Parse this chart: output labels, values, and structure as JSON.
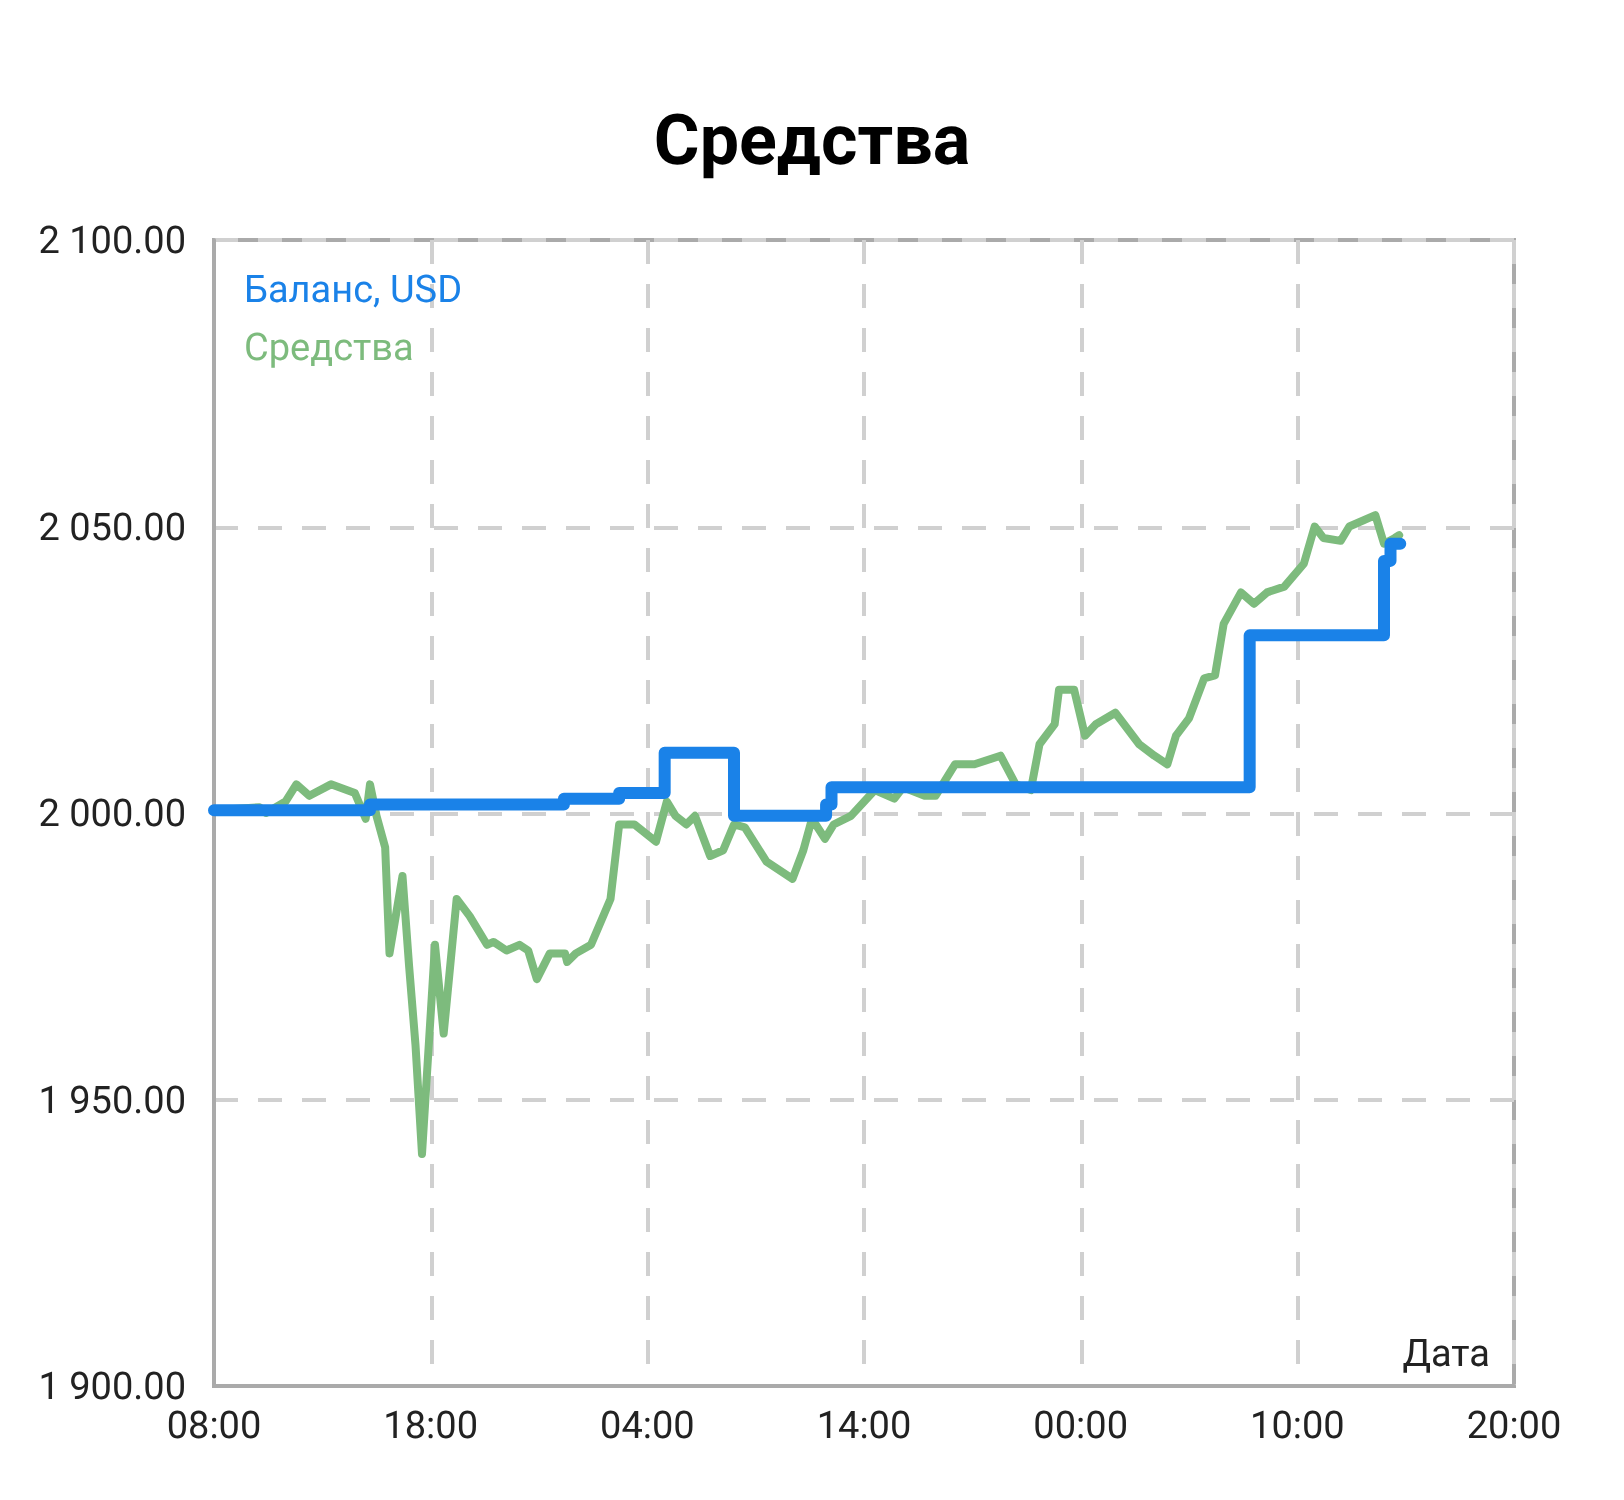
{
  "chart_data": {
    "type": "line",
    "title": "Средства",
    "xlabel": "Дата",
    "xlim": [
      "--01-01T08:00",
      "--01-03T20:00"
    ],
    "xticks": [
      {
        "value": "--01-01T08:00",
        "label": "08:00"
      },
      {
        "value": "--01-01T18:00",
        "label": "18:00"
      },
      {
        "value": "--01-02T04:00",
        "label": "04:00"
      },
      {
        "value": "--01-02T14:00",
        "label": "14:00"
      },
      {
        "value": "--01-03T00:00",
        "label": "00:00"
      },
      {
        "value": "--01-03T10:00",
        "label": "10:00"
      },
      {
        "value": "--01-03T20:00",
        "label": "20:00"
      }
    ],
    "ylim": [
      1900,
      2100
    ],
    "yticks": [
      {
        "value": 1900,
        "label": "1 900.00"
      },
      {
        "value": 1950,
        "label": "1 950.00"
      },
      {
        "value": 2000,
        "label": "2 000.00"
      },
      {
        "value": 2050,
        "label": "2 050.00"
      },
      {
        "value": 2100,
        "label": "2 100.00"
      }
    ],
    "grid": true,
    "legend": "top left",
    "marker": "none",
    "series": [
      {
        "name": "Баланс, USD",
        "type": "step",
        "color": "#1a82e8",
        "x": [
          "--01-01T08:00",
          "--01-01T15:12",
          "--01-02T00:09",
          "--01-02T02:42",
          "--01-02T04:48",
          "--01-02T08:00",
          "--01-02T12:15",
          "--01-02T12:30",
          "--01-03T07:48",
          "--01-03T14:00",
          "--01-03T14:18",
          "--01-03T14:45"
        ],
        "values": [
          2000.5,
          2001.5,
          2002.5,
          2003.5,
          2010.5,
          1999.5,
          2001.5,
          2004.5,
          2031,
          2044,
          2047,
          2047
        ]
      },
      {
        "name": "Средства",
        "color": "#7dbb7d",
        "x": [
          "--01-01T08:00",
          "--01-01T10:06",
          "--01-01T10:24",
          "--01-01T11:18",
          "--01-01T11:48",
          "--01-01T12:24",
          "--01-01T13:24",
          "--01-01T14:30",
          "--01-01T15:00",
          "--01-01T15:12",
          "--01-01T15:30",
          "--01-01T15:54",
          "--01-01T16:06",
          "--01-01T16:42",
          "--01-01T17:00",
          "--01-01T17:18",
          "--01-01T17:36",
          "--01-01T18:12",
          "--01-01T18:36",
          "--01-01T19:12",
          "--01-01T19:48",
          "--01-01T20:36",
          "--01-01T20:54",
          "--01-01T21:30",
          "--01-01T22:06",
          "--01-01T22:30",
          "--01-01T22:54",
          "--01-01T23:30",
          "--01-02T00:12",
          "--01-02T00:18",
          "--01-02T00:42",
          "--01-02T01:24",
          "--01-02T02:18",
          "--01-02T02:42",
          "--01-02T03:24",
          "--01-02T04:24",
          "--01-02T04:54",
          "--01-02T05:18",
          "--01-02T05:48",
          "--01-02T06:12",
          "--01-02T06:54",
          "--01-02T07:30",
          "--01-02T08:00",
          "--01-02T08:30",
          "--01-02T09:30",
          "--01-02T10:42",
          "--01-02T11:12",
          "--01-02T11:36",
          "--01-02T12:12",
          "--01-02T12:36",
          "--01-02T13:24",
          "--01-02T14:30",
          "--01-02T15:24",
          "--01-02T15:48",
          "--01-02T16:48",
          "--01-02T17:18",
          "--01-02T18:12",
          "--01-02T19:06",
          "--01-02T20:18",
          "--01-02T21:00",
          "--01-02T21:42",
          "--01-02T22:06",
          "--01-02T22:48",
          "--01-02T23:00",
          "--01-02T23:42",
          "--01-03T00:12",
          "--01-03T00:42",
          "--01-03T01:36",
          "--01-03T02:42",
          "--01-03T03:24",
          "--01-03T04:00",
          "--01-03T04:24",
          "--01-03T05:00",
          "--01-03T05:42",
          "--01-03T06:12",
          "--01-03T06:36",
          "--01-03T07:24",
          "--01-03T08:00",
          "--01-03T08:36",
          "--01-03T09:24",
          "--01-03T10:18",
          "--01-03T10:48",
          "--01-03T11:12",
          "--01-03T12:00",
          "--01-03T12:24",
          "--01-03T13:36",
          "--01-03T14:00",
          "--01-03T14:30",
          "--01-03T14:42"
        ],
        "values": [
          2000.5,
          2001,
          2000,
          2002,
          2005,
          2003,
          2005,
          2003.5,
          1999,
          2005,
          1999.5,
          1994,
          1975.5,
          1989,
          1973.5,
          1959.5,
          1940.5,
          1977,
          1961.5,
          1985,
          1982,
          1977,
          1977.5,
          1976,
          1977,
          1976,
          1971,
          1975.5,
          1975.5,
          1974,
          1975.5,
          1977,
          1985,
          1998,
          1998,
          1995,
          2002,
          1999.5,
          1998,
          1999.5,
          1992.5,
          1993.5,
          1998,
          1997.5,
          1991.5,
          1988.5,
          1993.5,
          1999,
          1995.5,
          1998,
          1999.5,
          2004,
          2002.5,
          2004.5,
          2003,
          2003,
          2008.5,
          2008.5,
          2010,
          2005,
          2004,
          2012,
          2015.5,
          2021.5,
          2021.5,
          2013.5,
          2015.5,
          2017.5,
          2012,
          2010,
          2008.5,
          2013.5,
          2016.5,
          2023.5,
          2024,
          2033,
          2038.5,
          2036.5,
          2038.5,
          2039.5,
          2043.5,
          2050,
          2048,
          2047.5,
          2050,
          2052,
          2047,
          2048,
          2048.5
        ]
      }
    ]
  }
}
